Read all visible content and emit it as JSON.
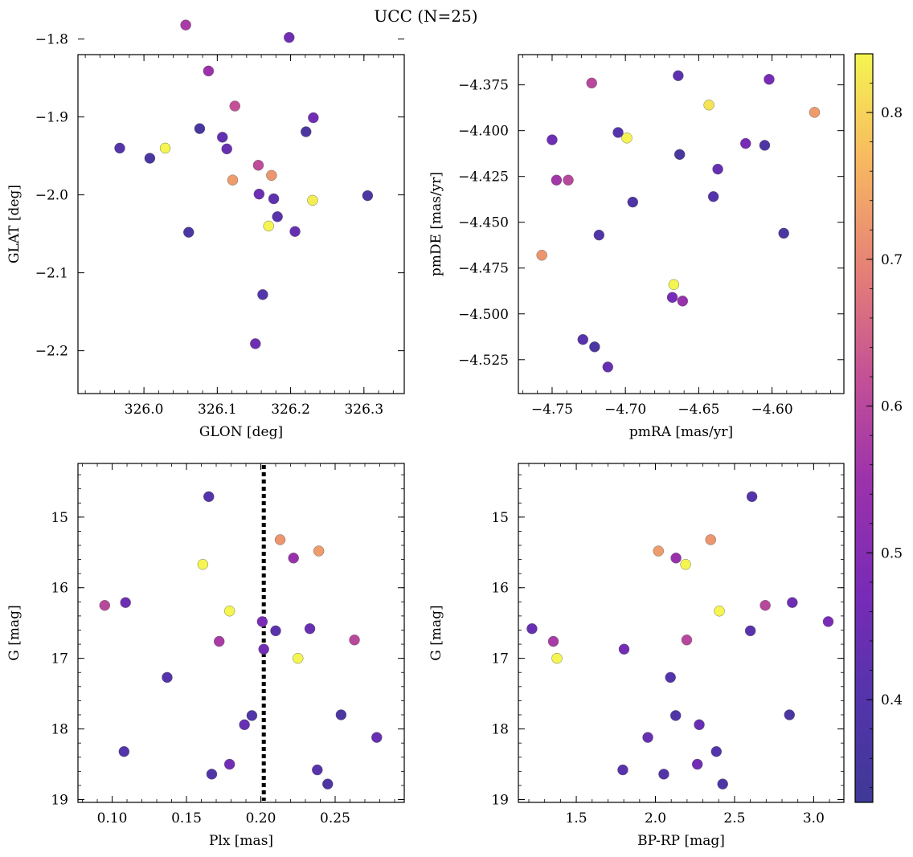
{
  "figure": {
    "suptitle": "UCC (N=25)"
  },
  "colorbar": {
    "cmap": "plasma",
    "vmin": 0.33,
    "vmax": 0.84,
    "ticks": [
      0.4,
      0.5,
      0.6,
      0.7,
      0.8
    ],
    "tick_labels": [
      "0.4",
      "0.5",
      "0.6",
      "0.7",
      "0.8"
    ]
  },
  "chart_data": [
    {
      "type": "scatter",
      "xlabel": "GLON [deg]",
      "ylabel": "GLAT [deg]",
      "xlim": [
        325.91,
        326.355
      ],
      "ylim": [
        -2.255,
        -1.82
      ],
      "xticks": [
        326.0,
        326.1,
        326.2,
        326.3
      ],
      "xtick_labels": [
        "326.0",
        "326.1",
        "326.2",
        "326.3"
      ],
      "yticks": [
        -1.8,
        -1.9,
        -2.0,
        -2.1,
        -2.2
      ],
      "ytick_labels": [
        "−1.8",
        "−1.9",
        "−2.0",
        "−2.1",
        "−2.2"
      ],
      "points": [
        {
          "x": 325.967,
          "y": -1.94,
          "c": 0.4
        },
        {
          "x": 326.008,
          "y": -1.953,
          "c": 0.37
        },
        {
          "x": 326.029,
          "y": -1.94,
          "c": 0.84
        },
        {
          "x": 326.057,
          "y": -1.782,
          "c": 0.57
        },
        {
          "x": 326.061,
          "y": -2.048,
          "c": 0.37
        },
        {
          "x": 326.076,
          "y": -1.915,
          "c": 0.36
        },
        {
          "x": 326.088,
          "y": -1.841,
          "c": 0.55
        },
        {
          "x": 326.107,
          "y": -1.926,
          "c": 0.43
        },
        {
          "x": 326.113,
          "y": -1.941,
          "c": 0.44
        },
        {
          "x": 326.121,
          "y": -1.981,
          "c": 0.73
        },
        {
          "x": 326.124,
          "y": -1.886,
          "c": 0.62
        },
        {
          "x": 326.152,
          "y": -2.191,
          "c": 0.45
        },
        {
          "x": 326.156,
          "y": -1.962,
          "c": 0.61
        },
        {
          "x": 326.157,
          "y": -1.999,
          "c": 0.45
        },
        {
          "x": 326.162,
          "y": -2.128,
          "c": 0.4
        },
        {
          "x": 326.17,
          "y": -2.04,
          "c": 0.84
        },
        {
          "x": 326.174,
          "y": -1.975,
          "c": 0.72
        },
        {
          "x": 326.177,
          "y": -2.005,
          "c": 0.42
        },
        {
          "x": 326.182,
          "y": -2.028,
          "c": 0.41
        },
        {
          "x": 326.198,
          "y": -1.798,
          "c": 0.46
        },
        {
          "x": 326.206,
          "y": -2.047,
          "c": 0.44
        },
        {
          "x": 326.221,
          "y": -1.919,
          "c": 0.37
        },
        {
          "x": 326.23,
          "y": -2.007,
          "c": 0.83
        },
        {
          "x": 326.231,
          "y": -1.901,
          "c": 0.46
        },
        {
          "x": 326.305,
          "y": -2.001,
          "c": 0.37
        }
      ]
    },
    {
      "type": "scatter",
      "xlabel": "pmRA [mas/yr]",
      "ylabel": "pmDE [mas/yr]",
      "xlim": [
        -4.773,
        -4.551
      ],
      "ylim": [
        -4.5435,
        -4.3585
      ],
      "xticks": [
        -4.75,
        -4.7,
        -4.65,
        -4.6
      ],
      "xtick_labels": [
        "−4.75",
        "−4.70",
        "−4.65",
        "−4.60"
      ],
      "yticks": [
        -4.375,
        -4.4,
        -4.425,
        -4.45,
        -4.475,
        -4.5,
        -4.525
      ],
      "ytick_labels": [
        "−4.375",
        "−4.400",
        "−4.425",
        "−4.450",
        "−4.475",
        "−4.500",
        "−4.525"
      ],
      "points": [
        {
          "x": -4.757,
          "y": -4.468,
          "c": 0.72
        },
        {
          "x": -4.75,
          "y": -4.405,
          "c": 0.45
        },
        {
          "x": -4.747,
          "y": -4.427,
          "c": 0.56
        },
        {
          "x": -4.739,
          "y": -4.427,
          "c": 0.6
        },
        {
          "x": -4.729,
          "y": -4.514,
          "c": 0.41
        },
        {
          "x": -4.723,
          "y": -4.374,
          "c": 0.6
        },
        {
          "x": -4.721,
          "y": -4.518,
          "c": 0.37
        },
        {
          "x": -4.718,
          "y": -4.457,
          "c": 0.39
        },
        {
          "x": -4.712,
          "y": -4.529,
          "c": 0.44
        },
        {
          "x": -4.705,
          "y": -4.401,
          "c": 0.4
        },
        {
          "x": -4.699,
          "y": -4.404,
          "c": 0.84
        },
        {
          "x": -4.695,
          "y": -4.439,
          "c": 0.38
        },
        {
          "x": -4.668,
          "y": -4.491,
          "c": 0.47
        },
        {
          "x": -4.667,
          "y": -4.484,
          "c": 0.84
        },
        {
          "x": -4.664,
          "y": -4.37,
          "c": 0.42
        },
        {
          "x": -4.663,
          "y": -4.413,
          "c": 0.36
        },
        {
          "x": -4.661,
          "y": -4.493,
          "c": 0.54
        },
        {
          "x": -4.643,
          "y": -4.386,
          "c": 0.82
        },
        {
          "x": -4.64,
          "y": -4.436,
          "c": 0.4
        },
        {
          "x": -4.637,
          "y": -4.421,
          "c": 0.44
        },
        {
          "x": -4.618,
          "y": -4.407,
          "c": 0.47
        },
        {
          "x": -4.605,
          "y": -4.408,
          "c": 0.38
        },
        {
          "x": -4.602,
          "y": -4.372,
          "c": 0.47
        },
        {
          "x": -4.592,
          "y": -4.456,
          "c": 0.37
        },
        {
          "x": -4.571,
          "y": -4.39,
          "c": 0.73
        }
      ]
    },
    {
      "type": "scatter",
      "xlabel": "Plx [mas]",
      "ylabel": "G [mag]",
      "xlim": [
        0.077,
        0.2965
      ],
      "ylim": [
        19.04,
        14.24
      ],
      "y_inverted": true,
      "xticks": [
        0.1,
        0.15,
        0.2,
        0.25
      ],
      "xtick_labels": [
        "0.10",
        "0.15",
        "0.20",
        "0.25"
      ],
      "yticks": [
        15,
        16,
        17,
        18,
        19
      ],
      "ytick_labels": [
        "15",
        "16",
        "17",
        "18",
        "19"
      ],
      "vline": {
        "x": 0.202,
        "style": "dotted",
        "color": "#000000"
      },
      "points": [
        {
          "x": 0.095,
          "y": 16.25,
          "c": 0.6
        },
        {
          "x": 0.108,
          "y": 18.32,
          "c": 0.4
        },
        {
          "x": 0.109,
          "y": 16.21,
          "c": 0.45
        },
        {
          "x": 0.137,
          "y": 17.27,
          "c": 0.4
        },
        {
          "x": 0.161,
          "y": 15.67,
          "c": 0.84
        },
        {
          "x": 0.165,
          "y": 14.71,
          "c": 0.4
        },
        {
          "x": 0.167,
          "y": 18.64,
          "c": 0.39
        },
        {
          "x": 0.172,
          "y": 16.76,
          "c": 0.57
        },
        {
          "x": 0.179,
          "y": 16.33,
          "c": 0.84
        },
        {
          "x": 0.179,
          "y": 18.5,
          "c": 0.46
        },
        {
          "x": 0.189,
          "y": 17.94,
          "c": 0.44
        },
        {
          "x": 0.194,
          "y": 17.81,
          "c": 0.39
        },
        {
          "x": 0.201,
          "y": 16.48,
          "c": 0.48
        },
        {
          "x": 0.202,
          "y": 16.87,
          "c": 0.46
        },
        {
          "x": 0.21,
          "y": 16.61,
          "c": 0.41
        },
        {
          "x": 0.213,
          "y": 15.32,
          "c": 0.72
        },
        {
          "x": 0.222,
          "y": 15.58,
          "c": 0.54
        },
        {
          "x": 0.225,
          "y": 17.0,
          "c": 0.84
        },
        {
          "x": 0.233,
          "y": 16.58,
          "c": 0.44
        },
        {
          "x": 0.238,
          "y": 18.58,
          "c": 0.41
        },
        {
          "x": 0.239,
          "y": 15.48,
          "c": 0.73
        },
        {
          "x": 0.245,
          "y": 18.78,
          "c": 0.38
        },
        {
          "x": 0.254,
          "y": 17.8,
          "c": 0.37
        },
        {
          "x": 0.263,
          "y": 16.74,
          "c": 0.6
        },
        {
          "x": 0.278,
          "y": 18.12,
          "c": 0.44
        }
      ]
    },
    {
      "type": "scatter",
      "xlabel": "BP-RP [mag]",
      "ylabel": "G [mag]",
      "xlim": [
        1.134,
        3.191
      ],
      "ylim": [
        19.04,
        14.24
      ],
      "y_inverted": true,
      "xticks": [
        1.5,
        2.0,
        2.5,
        3.0
      ],
      "xtick_labels": [
        "1.5",
        "2.0",
        "2.5",
        "3.0"
      ],
      "yticks": [
        15,
        16,
        17,
        18,
        19
      ],
      "ytick_labels": [
        "15",
        "16",
        "17",
        "18",
        "19"
      ],
      "points": [
        {
          "x": 1.22,
          "y": 16.58,
          "c": 0.44
        },
        {
          "x": 1.355,
          "y": 16.76,
          "c": 0.57
        },
        {
          "x": 1.378,
          "y": 17.0,
          "c": 0.84
        },
        {
          "x": 1.794,
          "y": 18.58,
          "c": 0.41
        },
        {
          "x": 1.802,
          "y": 16.87,
          "c": 0.46
        },
        {
          "x": 1.952,
          "y": 18.12,
          "c": 0.44
        },
        {
          "x": 2.019,
          "y": 15.48,
          "c": 0.73
        },
        {
          "x": 2.053,
          "y": 18.64,
          "c": 0.39
        },
        {
          "x": 2.095,
          "y": 17.27,
          "c": 0.4
        },
        {
          "x": 2.128,
          "y": 17.81,
          "c": 0.39
        },
        {
          "x": 2.13,
          "y": 15.58,
          "c": 0.54
        },
        {
          "x": 2.191,
          "y": 15.67,
          "c": 0.84
        },
        {
          "x": 2.198,
          "y": 16.74,
          "c": 0.6
        },
        {
          "x": 2.265,
          "y": 18.5,
          "c": 0.46
        },
        {
          "x": 2.277,
          "y": 17.94,
          "c": 0.44
        },
        {
          "x": 2.349,
          "y": 15.32,
          "c": 0.72
        },
        {
          "x": 2.385,
          "y": 18.32,
          "c": 0.4
        },
        {
          "x": 2.404,
          "y": 16.33,
          "c": 0.84
        },
        {
          "x": 2.425,
          "y": 18.78,
          "c": 0.38
        },
        {
          "x": 2.6,
          "y": 16.61,
          "c": 0.41
        },
        {
          "x": 2.61,
          "y": 14.71,
          "c": 0.4
        },
        {
          "x": 2.694,
          "y": 16.25,
          "c": 0.6
        },
        {
          "x": 2.847,
          "y": 17.8,
          "c": 0.37
        },
        {
          "x": 2.865,
          "y": 16.21,
          "c": 0.45
        },
        {
          "x": 3.092,
          "y": 16.48,
          "c": 0.48
        }
      ]
    }
  ]
}
